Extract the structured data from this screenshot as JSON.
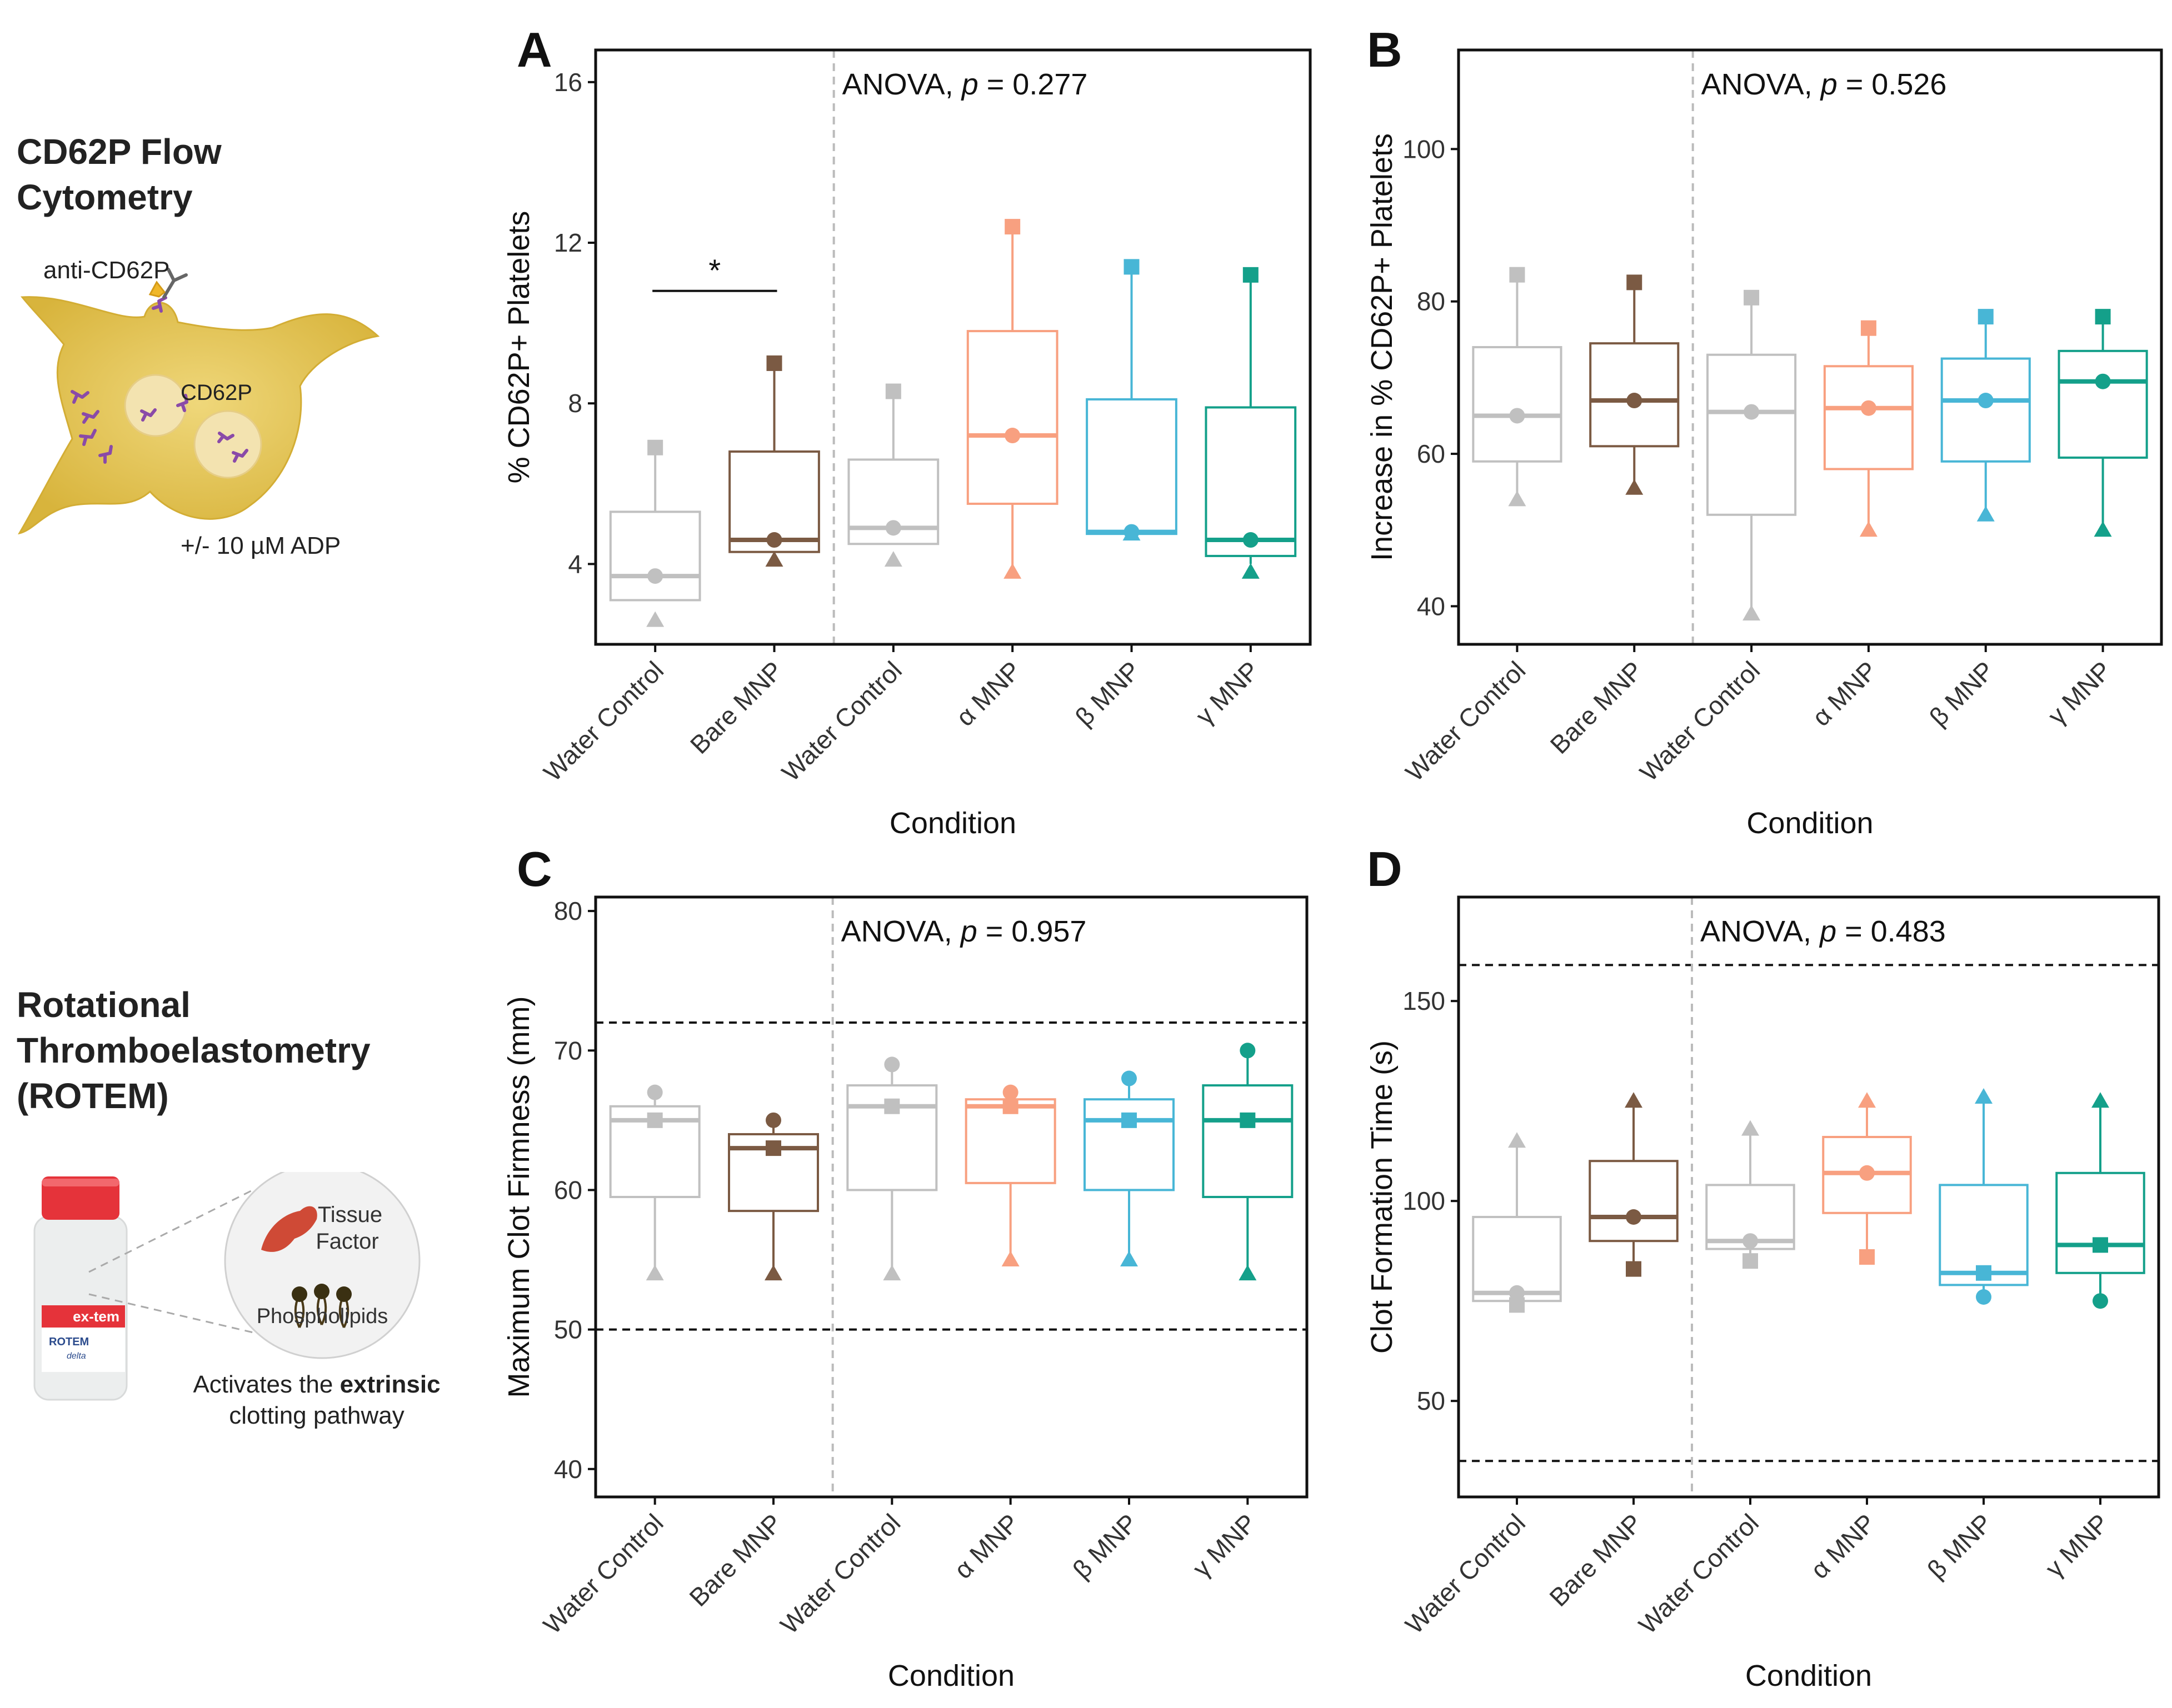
{
  "left_panel": {
    "flow": {
      "title": "CD62P Flow Cytometry",
      "title_line1": "CD62P Flow",
      "title_line2": "Cytometry",
      "antibody_label": "anti-CD62P",
      "receptor_label": "CD62P",
      "treatment_label": "+/- 10 µM ADP"
    },
    "rotem": {
      "title": "Rotational Thromboelastometry (ROTEM)",
      "title_line1": "Rotational",
      "title_line2": "Thromboelastometry",
      "title_line3": "(ROTEM)",
      "reagent_label": "ex-tem",
      "device_label": "ROTEM",
      "device_sub": "delta",
      "tissue_factor_line1": "Tissue",
      "tissue_factor_line2": "Factor",
      "phospholipids": "Phospholipids",
      "caption_prefix": "Activates the ",
      "caption_bold": "extrinsic",
      "caption_line2": "clotting pathway"
    }
  },
  "colors": {
    "water_control": "#c0c0c0",
    "bare_mnp": "#7b5a43",
    "alpha_mnp": "#f8a080",
    "beta_mnp": "#48b6d6",
    "gamma_mnp": "#14a08a"
  },
  "chart_data": [
    {
      "panel": "A",
      "type": "box",
      "ylabel": "% CD62P+ Platelets",
      "xlabel": "Condition",
      "ylim": [
        2,
        16.8
      ],
      "yticks": [
        4,
        8,
        12,
        16
      ],
      "annotation": "ANOVA, ",
      "annotation_p": "p",
      "annotation_value": " = 0.277",
      "significance": {
        "from": 0,
        "to": 1,
        "label": "*",
        "y": 10.8
      },
      "reference_lines": [],
      "categories": [
        "Water Control",
        "Bare MNP",
        "Water Control",
        "α MNP",
        "β MNP",
        "γ MNP"
      ],
      "color_keys": [
        "water_control",
        "bare_mnp",
        "water_control",
        "alpha_mnp",
        "beta_mnp",
        "gamma_mnp"
      ],
      "boxes": [
        {
          "q1": 3.1,
          "median": 3.7,
          "q3": 5.3,
          "whisker_low": 3.1,
          "whisker_high": 6.9,
          "circle": 3.7,
          "square": 6.9,
          "triangle": 2.6
        },
        {
          "q1": 4.3,
          "median": 4.6,
          "q3": 6.8,
          "whisker_low": 4.3,
          "whisker_high": 9.0,
          "circle": 4.6,
          "square": 9.0,
          "triangle": 4.1
        },
        {
          "q1": 4.5,
          "median": 4.9,
          "q3": 6.6,
          "whisker_low": 4.5,
          "whisker_high": 8.3,
          "circle": 4.9,
          "square": 8.3,
          "triangle": 4.1
        },
        {
          "q1": 5.5,
          "median": 7.2,
          "q3": 9.8,
          "whisker_low": 3.9,
          "whisker_high": 12.4,
          "circle": 7.2,
          "square": 12.4,
          "triangle": 3.8
        },
        {
          "q1": 4.75,
          "median": 4.8,
          "q3": 8.1,
          "whisker_low": 4.75,
          "whisker_high": 11.4,
          "circle": 4.8,
          "square": 11.4,
          "triangle": 4.75
        },
        {
          "q1": 4.2,
          "median": 4.6,
          "q3": 7.9,
          "whisker_low": 4.0,
          "whisker_high": 11.2,
          "circle": 4.6,
          "square": 11.2,
          "triangle": 3.8
        }
      ]
    },
    {
      "panel": "B",
      "type": "box",
      "ylabel": "Increase in % CD62P+ Platelets",
      "xlabel": "Condition",
      "ylim": [
        35,
        113
      ],
      "yticks": [
        40,
        60,
        80,
        100
      ],
      "annotation": "ANOVA, ",
      "annotation_p": "p",
      "annotation_value": " = 0.526",
      "reference_lines": [],
      "categories": [
        "Water Control",
        "Bare MNP",
        "Water Control",
        "α MNP",
        "β MNP",
        "γ MNP"
      ],
      "color_keys": [
        "water_control",
        "bare_mnp",
        "water_control",
        "alpha_mnp",
        "beta_mnp",
        "gamma_mnp"
      ],
      "boxes": [
        {
          "q1": 59,
          "median": 65,
          "q3": 74,
          "whisker_low": 54,
          "whisker_high": 83.5,
          "circle": 65,
          "square": 83.5,
          "triangle": 54
        },
        {
          "q1": 61,
          "median": 67,
          "q3": 74.5,
          "whisker_low": 55.5,
          "whisker_high": 82.5,
          "circle": 67,
          "square": 82.5,
          "triangle": 55.5
        },
        {
          "q1": 52,
          "median": 65.5,
          "q3": 73,
          "whisker_low": 39,
          "whisker_high": 80.5,
          "circle": 65.5,
          "square": 80.5,
          "triangle": 39
        },
        {
          "q1": 58,
          "median": 66,
          "q3": 71.5,
          "whisker_low": 50,
          "whisker_high": 76.5,
          "circle": 66,
          "square": 76.5,
          "triangle": 50
        },
        {
          "q1": 59,
          "median": 67,
          "q3": 72.5,
          "whisker_low": 52,
          "whisker_high": 78,
          "circle": 67,
          "square": 78,
          "triangle": 52
        },
        {
          "q1": 59.5,
          "median": 69.5,
          "q3": 73.5,
          "whisker_low": 50,
          "whisker_high": 78,
          "circle": 69.5,
          "square": 78,
          "triangle": 50
        }
      ]
    },
    {
      "panel": "C",
      "type": "box",
      "ylabel": "Maximum Clot Firmness (mm)",
      "xlabel": "Condition",
      "ylim": [
        38,
        81
      ],
      "yticks": [
        40,
        50,
        60,
        70,
        80
      ],
      "annotation": "ANOVA, ",
      "annotation_p": "p",
      "annotation_value": " = 0.957",
      "reference_lines": [
        50,
        72
      ],
      "categories": [
        "Water Control",
        "Bare MNP",
        "Water Control",
        "α MNP",
        "β MNP",
        "γ MNP"
      ],
      "color_keys": [
        "water_control",
        "bare_mnp",
        "water_control",
        "alpha_mnp",
        "beta_mnp",
        "gamma_mnp"
      ],
      "boxes": [
        {
          "q1": 59.5,
          "median": 65,
          "q3": 66,
          "whisker_low": 54,
          "whisker_high": 67,
          "circle": 67,
          "square": 65,
          "triangle": 54
        },
        {
          "q1": 58.5,
          "median": 63,
          "q3": 64,
          "whisker_low": 54,
          "whisker_high": 65,
          "circle": 65,
          "square": 63,
          "triangle": 54
        },
        {
          "q1": 60,
          "median": 66,
          "q3": 67.5,
          "whisker_low": 54,
          "whisker_high": 69,
          "circle": 69,
          "square": 66,
          "triangle": 54
        },
        {
          "q1": 60.5,
          "median": 66,
          "q3": 66.5,
          "whisker_low": 55,
          "whisker_high": 67,
          "circle": 67,
          "square": 66,
          "triangle": 55
        },
        {
          "q1": 60,
          "median": 65,
          "q3": 66.5,
          "whisker_low": 55,
          "whisker_high": 68,
          "circle": 68,
          "square": 65,
          "triangle": 55
        },
        {
          "q1": 59.5,
          "median": 65,
          "q3": 67.5,
          "whisker_low": 54,
          "whisker_high": 70,
          "circle": 70,
          "square": 65,
          "triangle": 54
        }
      ]
    },
    {
      "panel": "D",
      "type": "box",
      "ylabel": "Clot Formation Time (s)",
      "xlabel": "Condition",
      "ylim": [
        26,
        176
      ],
      "yticks": [
        50,
        100,
        150
      ],
      "annotation": "ANOVA, ",
      "annotation_p": "p",
      "annotation_value": " = 0.483",
      "reference_lines": [
        35,
        159
      ],
      "categories": [
        "Water Control",
        "Bare MNP",
        "Water Control",
        "α MNP",
        "β MNP",
        "γ MNP"
      ],
      "color_keys": [
        "water_control",
        "bare_mnp",
        "water_control",
        "alpha_mnp",
        "beta_mnp",
        "gamma_mnp"
      ],
      "boxes": [
        {
          "q1": 75,
          "median": 77,
          "q3": 96,
          "whisker_low": 74,
          "whisker_high": 115,
          "circle": 77,
          "square": 74,
          "triangle": 115
        },
        {
          "q1": 90,
          "median": 96,
          "q3": 110,
          "whisker_low": 83,
          "whisker_high": 125,
          "circle": 96,
          "square": 83,
          "triangle": 125
        },
        {
          "q1": 88,
          "median": 90,
          "q3": 104,
          "whisker_low": 85,
          "whisker_high": 118,
          "circle": 90,
          "square": 85,
          "triangle": 118
        },
        {
          "q1": 97,
          "median": 107,
          "q3": 116,
          "whisker_low": 86,
          "whisker_high": 125,
          "circle": 107,
          "square": 86,
          "triangle": 125
        },
        {
          "q1": 79,
          "median": 82,
          "q3": 104,
          "whisker_low": 76,
          "whisker_high": 126,
          "circle": 76,
          "square": 82,
          "triangle": 126
        },
        {
          "q1": 82,
          "median": 89,
          "q3": 107,
          "whisker_low": 75,
          "whisker_high": 125,
          "circle": 75,
          "square": 89,
          "triangle": 125
        }
      ]
    }
  ]
}
